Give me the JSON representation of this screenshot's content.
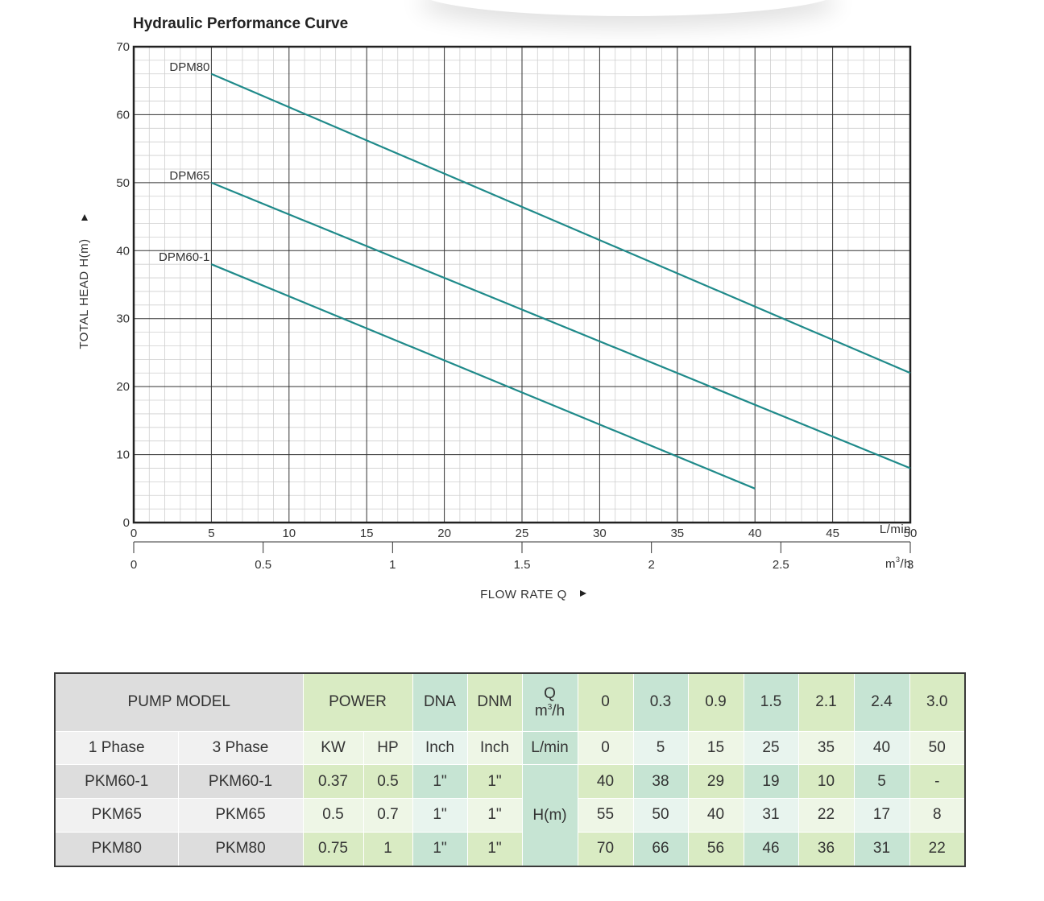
{
  "chart_data": {
    "type": "line",
    "title": "Hydraulic Performance Curve",
    "xlabel": "FLOW RATE Q",
    "ylabel": "TOTAL HEAD H(m)",
    "x_unit": "L/min",
    "x2_unit_base": "m",
    "x2_unit_sup": "3",
    "x2_unit_tail": "/h",
    "xlim": [
      0,
      50
    ],
    "ylim": [
      0,
      70
    ],
    "x_ticks": [
      "0",
      "5",
      "10",
      "15",
      "20",
      "25",
      "30",
      "35",
      "40",
      "45",
      "50"
    ],
    "x2_ticks": [
      "0",
      "0.5",
      "1",
      "1.5",
      "2",
      "2.5",
      "3"
    ],
    "y_ticks": [
      "0",
      "10",
      "20",
      "30",
      "40",
      "50",
      "60",
      "70"
    ],
    "grid": true,
    "series": [
      {
        "name": "DPM80",
        "points": [
          [
            5,
            66
          ],
          [
            50,
            22
          ]
        ]
      },
      {
        "name": "DPM65",
        "points": [
          [
            5,
            50
          ],
          [
            50,
            8
          ]
        ]
      },
      {
        "name": "DPM60-1",
        "points": [
          [
            5,
            38
          ],
          [
            40,
            5
          ]
        ]
      }
    ],
    "line_color": "#1f8a8a"
  },
  "table": {
    "pump_model": "PUMP MODEL",
    "power": "POWER",
    "dna": "DNA",
    "dnm": "DNM",
    "q_label": "Q",
    "q_unit_base": "m",
    "q_unit_sup": "3",
    "q_unit_tail": "/h",
    "q_values": [
      "0",
      "0.3",
      "0.9",
      "1.5",
      "2.1",
      "2.4",
      "3.0"
    ],
    "phase1": "1 Phase",
    "phase3": "3 Phase",
    "kw": "KW",
    "hp": "HP",
    "inch": "Inch",
    "lmin": "L/min",
    "lmin_values": [
      "0",
      "5",
      "15",
      "25",
      "35",
      "40",
      "50"
    ],
    "hm": "H(m)",
    "rows": [
      {
        "p1": "PKM60-1",
        "p3": "PKM60-1",
        "kw": "0.37",
        "hp": "0.5",
        "dna": "1\"",
        "dnm": "1\"",
        "h": [
          "40",
          "38",
          "29",
          "19",
          "10",
          "5",
          "-"
        ]
      },
      {
        "p1": "PKM65",
        "p3": "PKM65",
        "kw": "0.5",
        "hp": "0.7",
        "dna": "1\"",
        "dnm": "1\"",
        "h": [
          "55",
          "50",
          "40",
          "31",
          "22",
          "17",
          "8"
        ]
      },
      {
        "p1": "PKM80",
        "p3": "PKM80",
        "kw": "0.75",
        "hp": "1",
        "dna": "1\"",
        "dnm": "1\"",
        "h": [
          "70",
          "66",
          "56",
          "46",
          "36",
          "31",
          "22"
        ]
      }
    ]
  }
}
